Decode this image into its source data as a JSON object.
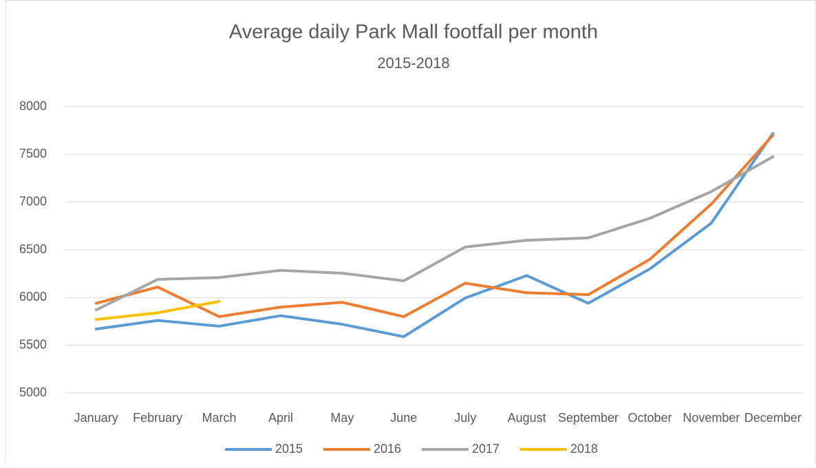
{
  "chart_data": {
    "type": "line",
    "title": "Average daily Park Mall footfall per month",
    "subtitle": "2015-2018",
    "categories": [
      "January",
      "February",
      "March",
      "April",
      "May",
      "June",
      "July",
      "August",
      "September",
      "October",
      "November",
      "December"
    ],
    "series": [
      {
        "name": "2015",
        "color": "#5b9bd5",
        "values": [
          5670,
          5760,
          5700,
          5810,
          5720,
          5590,
          5995,
          6230,
          5940,
          6300,
          6780,
          7720
        ]
      },
      {
        "name": "2016",
        "color": "#ed7d31",
        "values": [
          5940,
          6110,
          5800,
          5900,
          5950,
          5800,
          6150,
          6050,
          6030,
          6400,
          6980,
          7700
        ]
      },
      {
        "name": "2017",
        "color": "#a5a5a5",
        "values": [
          5870,
          6190,
          6210,
          6285,
          6255,
          6175,
          6530,
          6600,
          6625,
          6830,
          7110,
          7475
        ]
      },
      {
        "name": "2018",
        "color": "#ffc000",
        "values": [
          5770,
          5840,
          5960,
          null,
          null,
          null,
          null,
          null,
          null,
          null,
          null,
          null
        ]
      }
    ],
    "ylim": [
      5000,
      8000
    ],
    "yticks": [
      5000,
      5500,
      6000,
      6500,
      7000,
      7500,
      8000
    ],
    "grid": true,
    "legend": "bottom"
  }
}
